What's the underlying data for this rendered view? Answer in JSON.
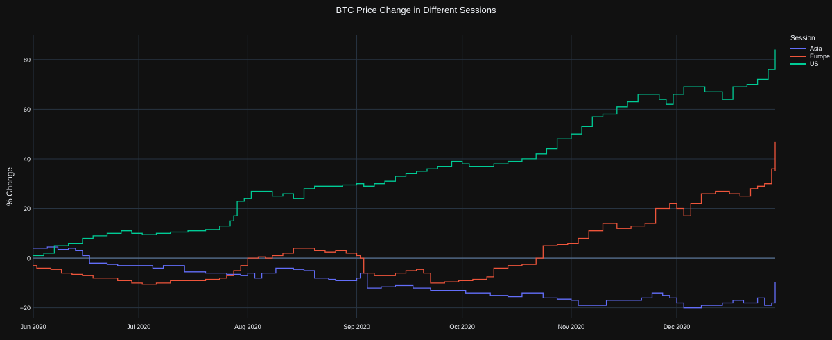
{
  "chart_data": {
    "type": "line",
    "title": "BTC Price Change in Different Sessions",
    "xlabel": "",
    "ylabel": "% Change",
    "x_ticks": [
      "Jun 2020",
      "Jul 2020",
      "Aug 2020",
      "Sep 2020",
      "Oct 2020",
      "Nov 2020",
      "Dec 2020"
    ],
    "x_range": [
      "2020-06-01",
      "2020-12-29"
    ],
    "y_ticks": [
      -20,
      0,
      20,
      40,
      60,
      80
    ],
    "ylim": [
      -24,
      90
    ],
    "grid": true,
    "zero_line": true,
    "legend_title": "Session",
    "legend_position": "top-right",
    "series": [
      {
        "name": "Asia",
        "color": "#636efa",
        "points": [
          [
            "2020-06-01",
            4
          ],
          [
            "2020-06-05",
            4.5
          ],
          [
            "2020-06-08",
            3.5
          ],
          [
            "2020-06-11",
            4
          ],
          [
            "2020-06-13",
            3
          ],
          [
            "2020-06-15",
            1
          ],
          [
            "2020-06-17",
            -2
          ],
          [
            "2020-06-22",
            -2.5
          ],
          [
            "2020-06-25",
            -3
          ],
          [
            "2020-07-01",
            -3
          ],
          [
            "2020-07-05",
            -4
          ],
          [
            "2020-07-08",
            -3
          ],
          [
            "2020-07-14",
            -5.5
          ],
          [
            "2020-07-20",
            -6
          ],
          [
            "2020-07-26",
            -6.5
          ],
          [
            "2020-07-30",
            -7
          ],
          [
            "2020-08-01",
            -6
          ],
          [
            "2020-08-03",
            -8
          ],
          [
            "2020-08-05",
            -6
          ],
          [
            "2020-08-09",
            -4
          ],
          [
            "2020-08-14",
            -4.5
          ],
          [
            "2020-08-17",
            -5
          ],
          [
            "2020-08-20",
            -8
          ],
          [
            "2020-08-24",
            -8.5
          ],
          [
            "2020-08-26",
            -9
          ],
          [
            "2020-08-29",
            -9
          ],
          [
            "2020-09-01",
            -8
          ],
          [
            "2020-09-02",
            -6
          ],
          [
            "2020-09-04",
            -12
          ],
          [
            "2020-09-08",
            -11.5
          ],
          [
            "2020-09-12",
            -11
          ],
          [
            "2020-09-17",
            -12
          ],
          [
            "2020-09-22",
            -13
          ],
          [
            "2020-09-27",
            -13
          ],
          [
            "2020-10-02",
            -14
          ],
          [
            "2020-10-06",
            -14
          ],
          [
            "2020-10-09",
            -15
          ],
          [
            "2020-10-14",
            -15.5
          ],
          [
            "2020-10-18",
            -14
          ],
          [
            "2020-10-21",
            -14
          ],
          [
            "2020-10-24",
            -16
          ],
          [
            "2020-10-28",
            -16.5
          ],
          [
            "2020-11-01",
            -17
          ],
          [
            "2020-11-03",
            -19
          ],
          [
            "2020-11-07",
            -19
          ],
          [
            "2020-11-11",
            -17
          ],
          [
            "2020-11-16",
            -17
          ],
          [
            "2020-11-21",
            -16
          ],
          [
            "2020-11-24",
            -14
          ],
          [
            "2020-11-27",
            -15
          ],
          [
            "2020-11-29",
            -16
          ],
          [
            "2020-12-01",
            -18
          ],
          [
            "2020-12-03",
            -20
          ],
          [
            "2020-12-08",
            -19
          ],
          [
            "2020-12-11",
            -19
          ],
          [
            "2020-12-14",
            -18
          ],
          [
            "2020-12-17",
            -17
          ],
          [
            "2020-12-20",
            -18
          ],
          [
            "2020-12-24",
            -16
          ],
          [
            "2020-12-26",
            -19
          ],
          [
            "2020-12-28",
            -18
          ],
          [
            "2020-12-30",
            -14
          ],
          [
            "2021-01-02",
            -12
          ],
          [
            "2021-01-04",
            -10
          ],
          [
            "2021-01-05",
            -9.5
          ]
        ]
      },
      {
        "name": "Europe",
        "color": "#ef553b",
        "points": [
          [
            "2020-06-01",
            -3
          ],
          [
            "2020-06-02",
            -4
          ],
          [
            "2020-06-06",
            -4.5
          ],
          [
            "2020-06-09",
            -6
          ],
          [
            "2020-06-12",
            -6.5
          ],
          [
            "2020-06-15",
            -7
          ],
          [
            "2020-06-18",
            -8
          ],
          [
            "2020-06-22",
            -8
          ],
          [
            "2020-06-25",
            -9
          ],
          [
            "2020-06-29",
            -10
          ],
          [
            "2020-07-02",
            -10.5
          ],
          [
            "2020-07-06",
            -10
          ],
          [
            "2020-07-10",
            -9
          ],
          [
            "2020-07-15",
            -9
          ],
          [
            "2020-07-20",
            -8.5
          ],
          [
            "2020-07-24",
            -8
          ],
          [
            "2020-07-26",
            -7
          ],
          [
            "2020-07-28",
            -5
          ],
          [
            "2020-07-30",
            -3
          ],
          [
            "2020-08-01",
            0
          ],
          [
            "2020-08-04",
            0.5
          ],
          [
            "2020-08-06",
            0
          ],
          [
            "2020-08-08",
            1
          ],
          [
            "2020-08-11",
            2
          ],
          [
            "2020-08-14",
            4
          ],
          [
            "2020-08-17",
            4
          ],
          [
            "2020-08-20",
            3
          ],
          [
            "2020-08-23",
            2.5
          ],
          [
            "2020-08-26",
            3
          ],
          [
            "2020-08-29",
            2
          ],
          [
            "2020-09-01",
            1
          ],
          [
            "2020-09-02",
            0
          ],
          [
            "2020-09-03",
            -6
          ],
          [
            "2020-09-06",
            -7
          ],
          [
            "2020-09-09",
            -7
          ],
          [
            "2020-09-12",
            -6
          ],
          [
            "2020-09-15",
            -5
          ],
          [
            "2020-09-18",
            -4.5
          ],
          [
            "2020-09-20",
            -6
          ],
          [
            "2020-09-22",
            -10
          ],
          [
            "2020-09-26",
            -9.5
          ],
          [
            "2020-09-30",
            -9
          ],
          [
            "2020-10-04",
            -8.5
          ],
          [
            "2020-10-08",
            -7.5
          ],
          [
            "2020-10-10",
            -4
          ],
          [
            "2020-10-14",
            -3
          ],
          [
            "2020-10-18",
            -2.5
          ],
          [
            "2020-10-21",
            -2.5
          ],
          [
            "2020-10-22",
            0
          ],
          [
            "2020-10-24",
            5
          ],
          [
            "2020-10-28",
            5.5
          ],
          [
            "2020-10-31",
            6
          ],
          [
            "2020-11-03",
            8
          ],
          [
            "2020-11-06",
            11
          ],
          [
            "2020-11-10",
            14
          ],
          [
            "2020-11-14",
            12
          ],
          [
            "2020-11-18",
            13
          ],
          [
            "2020-11-22",
            14
          ],
          [
            "2020-11-25",
            20
          ],
          [
            "2020-11-29",
            22
          ],
          [
            "2020-12-01",
            20
          ],
          [
            "2020-12-03",
            17
          ],
          [
            "2020-12-05",
            22
          ],
          [
            "2020-12-08",
            26
          ],
          [
            "2020-12-12",
            27
          ],
          [
            "2020-12-16",
            26
          ],
          [
            "2020-12-19",
            25
          ],
          [
            "2020-12-22",
            28
          ],
          [
            "2020-12-24",
            29
          ],
          [
            "2020-12-26",
            30
          ],
          [
            "2020-12-28",
            36
          ],
          [
            "2020-12-30",
            39
          ],
          [
            "2021-01-01",
            35
          ],
          [
            "2021-01-03",
            43
          ],
          [
            "2021-01-05",
            47
          ]
        ]
      },
      {
        "name": "US",
        "color": "#00cc96",
        "points": [
          [
            "2020-06-01",
            1
          ],
          [
            "2020-06-04",
            2
          ],
          [
            "2020-06-07",
            5
          ],
          [
            "2020-06-11",
            6
          ],
          [
            "2020-06-15",
            8
          ],
          [
            "2020-06-18",
            9
          ],
          [
            "2020-06-22",
            10
          ],
          [
            "2020-06-26",
            11
          ],
          [
            "2020-06-29",
            10
          ],
          [
            "2020-07-02",
            9.5
          ],
          [
            "2020-07-06",
            10
          ],
          [
            "2020-07-10",
            10.5
          ],
          [
            "2020-07-15",
            11
          ],
          [
            "2020-07-20",
            11.5
          ],
          [
            "2020-07-24",
            13
          ],
          [
            "2020-07-27",
            15
          ],
          [
            "2020-07-28",
            17
          ],
          [
            "2020-07-29",
            23
          ],
          [
            "2020-07-31",
            24
          ],
          [
            "2020-08-02",
            27
          ],
          [
            "2020-08-05",
            27
          ],
          [
            "2020-08-08",
            25
          ],
          [
            "2020-08-11",
            26
          ],
          [
            "2020-08-14",
            24
          ],
          [
            "2020-08-17",
            28
          ],
          [
            "2020-08-20",
            29
          ],
          [
            "2020-08-24",
            29
          ],
          [
            "2020-08-28",
            29.5
          ],
          [
            "2020-09-01",
            30
          ],
          [
            "2020-09-03",
            29
          ],
          [
            "2020-09-06",
            30
          ],
          [
            "2020-09-09",
            31
          ],
          [
            "2020-09-12",
            33
          ],
          [
            "2020-09-15",
            34
          ],
          [
            "2020-09-18",
            35
          ],
          [
            "2020-09-21",
            36
          ],
          [
            "2020-09-24",
            37
          ],
          [
            "2020-09-28",
            39
          ],
          [
            "2020-10-01",
            38
          ],
          [
            "2020-10-03",
            37
          ],
          [
            "2020-10-06",
            37
          ],
          [
            "2020-10-10",
            38
          ],
          [
            "2020-10-14",
            39
          ],
          [
            "2020-10-18",
            40
          ],
          [
            "2020-10-22",
            42
          ],
          [
            "2020-10-25",
            44
          ],
          [
            "2020-10-28",
            48
          ],
          [
            "2020-11-01",
            50
          ],
          [
            "2020-11-04",
            53
          ],
          [
            "2020-11-07",
            57
          ],
          [
            "2020-11-10",
            58
          ],
          [
            "2020-11-14",
            61
          ],
          [
            "2020-11-17",
            63
          ],
          [
            "2020-11-20",
            66
          ],
          [
            "2020-11-23",
            66
          ],
          [
            "2020-11-26",
            64
          ],
          [
            "2020-11-28",
            62
          ],
          [
            "2020-11-30",
            66
          ],
          [
            "2020-12-03",
            69
          ],
          [
            "2020-12-06",
            69
          ],
          [
            "2020-12-09",
            67
          ],
          [
            "2020-12-12",
            67
          ],
          [
            "2020-12-14",
            64
          ],
          [
            "2020-12-17",
            69
          ],
          [
            "2020-12-21",
            70
          ],
          [
            "2020-12-24",
            72
          ],
          [
            "2020-12-27",
            76
          ],
          [
            "2020-12-30",
            78
          ],
          [
            "2021-01-01",
            84
          ],
          [
            "2021-01-03",
            80
          ],
          [
            "2021-01-05",
            82
          ]
        ]
      }
    ]
  }
}
